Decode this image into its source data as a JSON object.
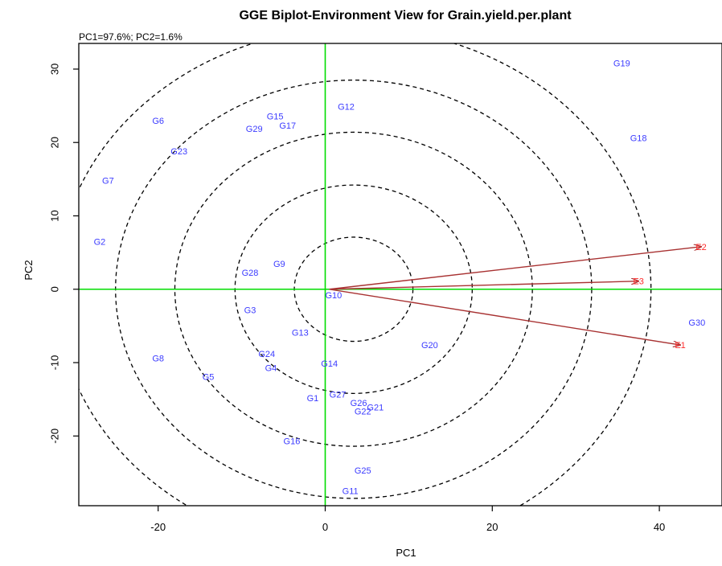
{
  "chart_data": {
    "type": "scatter",
    "title": "GGE Biplot-Environment View for Grain.yield.per.plant",
    "subtitle": "PC1=97.6%; PC2=1.6%",
    "xlabel": "PC1",
    "ylabel": "PC2",
    "xlim": [
      -29.5,
      47.5
    ],
    "ylim": [
      -29.5,
      33.5
    ],
    "xticks": [
      -20,
      0,
      20,
      40
    ],
    "yticks": [
      -20,
      -10,
      0,
      10,
      20,
      30
    ],
    "xtick_labels": [
      "-20",
      "0",
      "20",
      "40"
    ],
    "ytick_labels": [
      "-20",
      "-10",
      "0",
      "10",
      "20",
      "30"
    ],
    "grid": false,
    "circle_center": [
      3.4,
      0.0
    ],
    "circle_radii": [
      7.1,
      14.2,
      21.4,
      28.5,
      35.6
    ],
    "reference_lines": {
      "x": 0,
      "y": 0,
      "color": "#00dd00"
    },
    "genotypes": [
      {
        "label": "G1",
        "x": -1.5,
        "y": -14.8
      },
      {
        "label": "G2",
        "x": -27.0,
        "y": 6.5
      },
      {
        "label": "G3",
        "x": -9.0,
        "y": -2.8
      },
      {
        "label": "G4",
        "x": -6.5,
        "y": -10.7
      },
      {
        "label": "G5",
        "x": -14.0,
        "y": -11.9
      },
      {
        "label": "G6",
        "x": -20.0,
        "y": 23.0
      },
      {
        "label": "G7",
        "x": -26.0,
        "y": 14.8
      },
      {
        "label": "G8",
        "x": -20.0,
        "y": -9.4
      },
      {
        "label": "G9",
        "x": -5.5,
        "y": 3.5
      },
      {
        "label": "G10",
        "x": 1.0,
        "y": -0.8
      },
      {
        "label": "G11",
        "x": 3.0,
        "y": -27.5
      },
      {
        "label": "G12",
        "x": 2.5,
        "y": 24.9
      },
      {
        "label": "G13",
        "x": -3.0,
        "y": -5.9
      },
      {
        "label": "G14",
        "x": 0.5,
        "y": -10.1
      },
      {
        "label": "G15",
        "x": -6.0,
        "y": 23.6
      },
      {
        "label": "G16",
        "x": -4.0,
        "y": -20.7
      },
      {
        "label": "G17",
        "x": -4.5,
        "y": 22.3
      },
      {
        "label": "G18",
        "x": 37.5,
        "y": 20.6
      },
      {
        "label": "G19",
        "x": 35.5,
        "y": 30.8
      },
      {
        "label": "G20",
        "x": 12.5,
        "y": -7.6
      },
      {
        "label": "G21",
        "x": 6.0,
        "y": -16.1
      },
      {
        "label": "G22",
        "x": 4.5,
        "y": -16.6
      },
      {
        "label": "G23",
        "x": -17.5,
        "y": 18.8
      },
      {
        "label": "G24",
        "x": -7.0,
        "y": -8.8
      },
      {
        "label": "G25",
        "x": 4.5,
        "y": -24.7
      },
      {
        "label": "G26",
        "x": 4.0,
        "y": -15.5
      },
      {
        "label": "G27",
        "x": 1.5,
        "y": -14.3
      },
      {
        "label": "G28",
        "x": -9.0,
        "y": 2.3
      },
      {
        "label": "G29",
        "x": -8.5,
        "y": 21.9
      },
      {
        "label": "G30",
        "x": 44.5,
        "y": -4.5
      }
    ],
    "environments": [
      {
        "label": "E1",
        "x": 42.5,
        "y": -7.6
      },
      {
        "label": "E2",
        "x": 45.0,
        "y": 5.8
      },
      {
        "label": "E3",
        "x": 37.5,
        "y": 1.1
      }
    ],
    "vector_origin": [
      0.5,
      0.0
    ],
    "colors": {
      "genotype": "#3b3bff",
      "environment": "#ff2a2a",
      "vector": "#a83232",
      "reference": "#00dd00",
      "circle": "#000000"
    }
  }
}
